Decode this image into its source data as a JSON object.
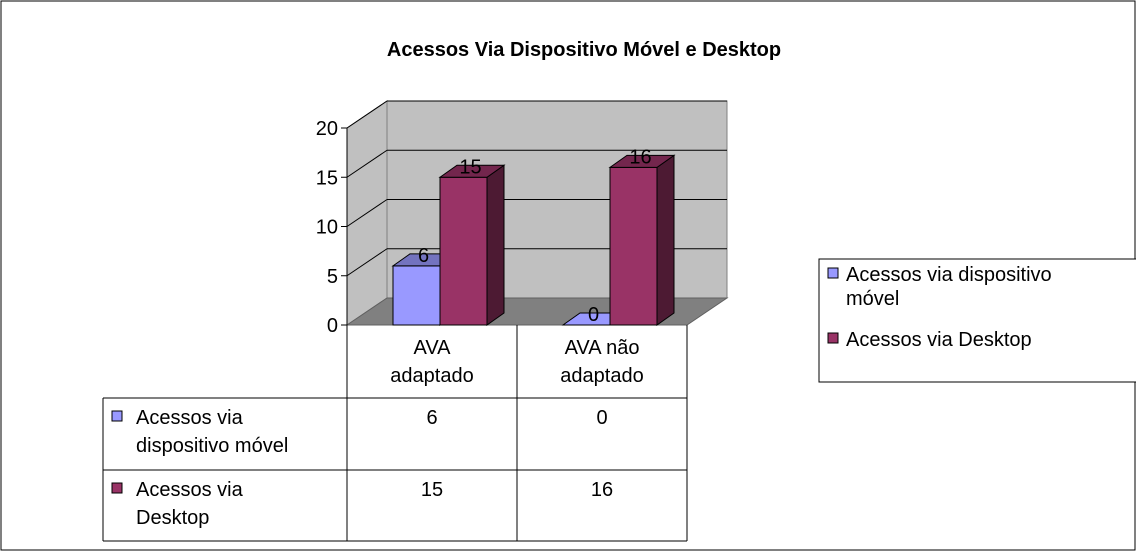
{
  "chart_data": {
    "type": "bar",
    "title": "Acessos Via Dispositivo Móvel e Desktop",
    "categories": [
      "AVA adaptado",
      "AVA não adaptado"
    ],
    "category_lines": [
      [
        "AVA",
        "adaptado"
      ],
      [
        "AVA não",
        "adaptado"
      ]
    ],
    "series": [
      {
        "name": "Acessos via dispositivo móvel",
        "values": [
          6,
          0
        ],
        "color": "#9999ff",
        "legend_lines": [
          "Acessos via dispositivo",
          "móvel"
        ],
        "table_lines": [
          "Acessos via",
          "dispositivo móvel"
        ]
      },
      {
        "name": "Acessos via Desktop",
        "values": [
          15,
          16
        ],
        "color": "#993366",
        "legend_lines": [
          "Acessos via Desktop"
        ],
        "table_lines": [
          "Acessos via",
          "Desktop"
        ]
      }
    ],
    "ylim": [
      0,
      20
    ],
    "yticks": [
      "0",
      "5",
      "10",
      "15",
      "20"
    ],
    "grid": true,
    "three_d": true,
    "data_table": true,
    "legend_position": "right"
  }
}
